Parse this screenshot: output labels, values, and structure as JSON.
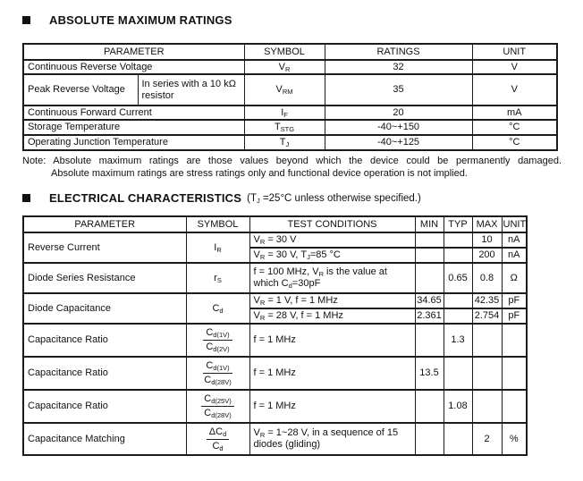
{
  "section1": {
    "title": "ABSOLUTE MAXIMUM RATINGS",
    "table": {
      "headers": [
        "PARAMETER",
        "SYMBOL",
        "RATINGS",
        "UNIT"
      ],
      "rows": [
        {
          "parameter": "Continuous Reverse Voltage",
          "symbol": "V_{R}",
          "rating": "32",
          "unit": "V"
        },
        {
          "parameter": "Peak Reverse Voltage",
          "condition": "In series with a 10 kΩ resistor",
          "symbol": "V_{RM}",
          "rating": "35",
          "unit": "V"
        },
        {
          "parameter": "Continuous Forward Current",
          "symbol": "I_{F}",
          "rating": "20",
          "unit": "mA"
        },
        {
          "parameter": "Storage Temperature",
          "symbol": "T_{STG}",
          "rating": "-40~+150",
          "unit": "°C"
        },
        {
          "parameter": "Operating Junction Temperature",
          "symbol": "T_{J}",
          "rating": "-40~+125",
          "unit": "°C"
        }
      ]
    },
    "note_label": "Note:",
    "note_line1": "Absolute maximum ratings are those values beyond which the device could be permanently damaged.",
    "note_line2": "Absolute maximum ratings are stress ratings only and functional device operation is not implied."
  },
  "section2": {
    "title": "ELECTRICAL CHARACTERISTICS",
    "title_note": "(T_{J} =25°C unless otherwise specified.)",
    "table": {
      "headers": [
        "PARAMETER",
        "SYMBOL",
        "TEST CONDITIONS",
        "MIN",
        "TYP",
        "MAX",
        "UNIT"
      ],
      "reverse_current": {
        "parameter": "Reverse Current",
        "symbol": "I_{R}",
        "sub": [
          {
            "cond": "V_{R} = 30 V",
            "min": "",
            "typ": "",
            "max": "10",
            "unit": "nA"
          },
          {
            "cond": "V_{R} = 30 V, T_{J}=85 °C",
            "min": "",
            "typ": "",
            "max": "200",
            "unit": "nA"
          }
        ]
      },
      "series_resistance": {
        "parameter": "Diode Series Resistance",
        "symbol": "r_{S}",
        "cond": "f = 100 MHz, V_{R} is the value at which C_{d}=30pF",
        "min": "",
        "typ": "0.65",
        "max": "0.8",
        "unit": "Ω"
      },
      "diode_capacitance": {
        "parameter": "Diode Capacitance",
        "symbol": "C_{d}",
        "sub": [
          {
            "cond": "V_{R} = 1 V, f = 1 MHz",
            "min": "34.65",
            "typ": "",
            "max": "42.35",
            "unit": "pF"
          },
          {
            "cond": "V_{R} = 28 V, f = 1 MHz",
            "min": "2.361",
            "typ": "",
            "max": "2.754",
            "unit": "pF"
          }
        ]
      },
      "cap_ratio_1": {
        "parameter": "Capacitance Ratio",
        "symbol_num": "C_{d(1V)}",
        "symbol_den": "C_{d(2V)}",
        "cond": "f = 1 MHz",
        "min": "",
        "typ": "1.3",
        "max": "",
        "unit": ""
      },
      "cap_ratio_2": {
        "parameter": "Capacitance Ratio",
        "symbol_num": "C_{d(1V)}",
        "symbol_den": "C_{d(28V)}",
        "cond": "f = 1 MHz",
        "min": "13.5",
        "typ": "",
        "max": "",
        "unit": ""
      },
      "cap_ratio_3": {
        "parameter": "Capacitance Ratio",
        "symbol_num": "C_{d(25V)}",
        "symbol_den": "C_{d(28V)}",
        "cond": "f = 1 MHz",
        "min": "",
        "typ": "1.08",
        "max": "",
        "unit": ""
      },
      "cap_matching": {
        "parameter": "Capacitance Matching",
        "symbol_num": "ΔC_{d}",
        "symbol_den": "C_{d}",
        "cond": "V_{R} = 1~28 V, in a sequence of 15 diodes (gliding)",
        "min": "",
        "typ": "",
        "max": "2",
        "unit": "%"
      }
    }
  }
}
